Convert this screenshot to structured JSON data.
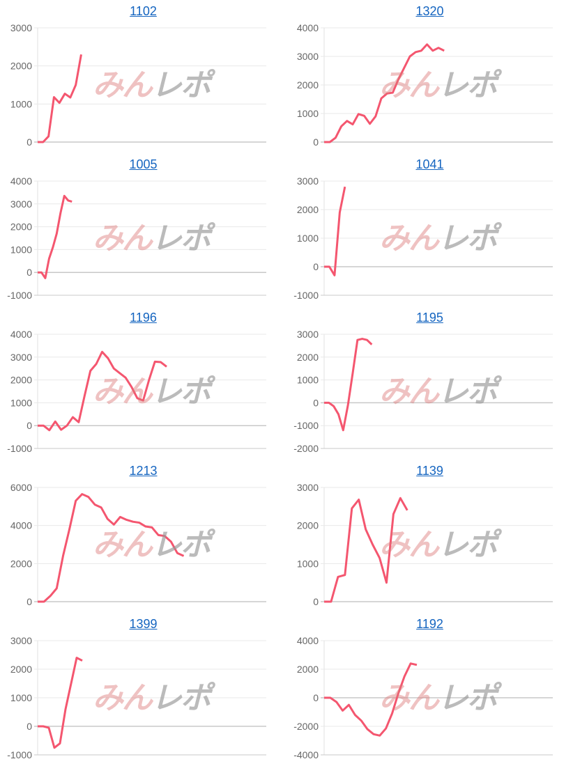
{
  "watermark": {
    "part1": "みん",
    "part2": "レポ"
  },
  "line_color": "#f4566f",
  "chart_data": [
    {
      "type": "line",
      "title": "1102",
      "ylim": [
        0,
        3000
      ],
      "ystep": 1000,
      "xmax": 42,
      "values": [
        0,
        0,
        150,
        1180,
        1030,
        1270,
        1170,
        1500,
        2300
      ]
    },
    {
      "type": "line",
      "title": "1320",
      "ylim": [
        0,
        4000
      ],
      "ystep": 1000,
      "xmax": 40,
      "values": [
        0,
        0,
        150,
        550,
        740,
        620,
        980,
        920,
        640,
        900,
        1530,
        1700,
        1730,
        2200,
        2600,
        3000,
        3150,
        3200,
        3420,
        3200,
        3300,
        3200
      ]
    },
    {
      "type": "line",
      "title": "1005",
      "ylim": [
        -1000,
        4000
      ],
      "ystep": 1000,
      "xmax": 60,
      "values": [
        0,
        0,
        -250,
        600,
        1100,
        1700,
        2600,
        3350,
        3150,
        3100
      ]
    },
    {
      "type": "line",
      "title": "1041",
      "ylim": [
        -1000,
        3000
      ],
      "ystep": 1000,
      "xmax": 44,
      "values": [
        0,
        0,
        -300,
        1900,
        2800
      ]
    },
    {
      "type": "line",
      "title": "1196",
      "ylim": [
        -1000,
        4000
      ],
      "ystep": 1000,
      "xmax": 39,
      "values": [
        0,
        0,
        -200,
        180,
        -180,
        0,
        370,
        150,
        1300,
        2400,
        2700,
        3230,
        2950,
        2500,
        2300,
        2100,
        1700,
        1200,
        1100,
        2000,
        2800,
        2780,
        2580
      ]
    },
    {
      "type": "line",
      "title": "1195",
      "ylim": [
        -2000,
        3000
      ],
      "ystep": 1000,
      "xmax": 48,
      "values": [
        0,
        0,
        -150,
        -500,
        -1200,
        -100,
        1300,
        2750,
        2800,
        2750,
        2550
      ]
    },
    {
      "type": "line",
      "title": "1213",
      "ylim": [
        0,
        6000
      ],
      "ystep": 2000,
      "xmax": 36,
      "values": [
        0,
        0,
        300,
        700,
        2400,
        3800,
        5300,
        5650,
        5500,
        5100,
        4950,
        4350,
        4050,
        4450,
        4300,
        4200,
        4150,
        3950,
        3900,
        3500,
        3450,
        3150,
        2550,
        2400
      ]
    },
    {
      "type": "line",
      "title": "1139",
      "ylim": [
        0,
        3000
      ],
      "ystep": 1000,
      "xmax": 33,
      "values": [
        0,
        0,
        650,
        700,
        2450,
        2680,
        1900,
        1500,
        1150,
        500,
        2300,
        2720,
        2400
      ]
    },
    {
      "type": "line",
      "title": "1399",
      "ylim": [
        -1000,
        3000
      ],
      "ystep": 1000,
      "xmax": 41,
      "values": [
        0,
        0,
        -50,
        -750,
        -600,
        600,
        1500,
        2400,
        2300
      ]
    },
    {
      "type": "line",
      "title": "1192",
      "ylim": [
        -4000,
        4000
      ],
      "ystep": 2000,
      "xmax": 37,
      "values": [
        0,
        0,
        -300,
        -900,
        -500,
        -1200,
        -1600,
        -2200,
        -2550,
        -2650,
        -2150,
        -1100,
        300,
        1500,
        2400,
        2300
      ]
    }
  ]
}
